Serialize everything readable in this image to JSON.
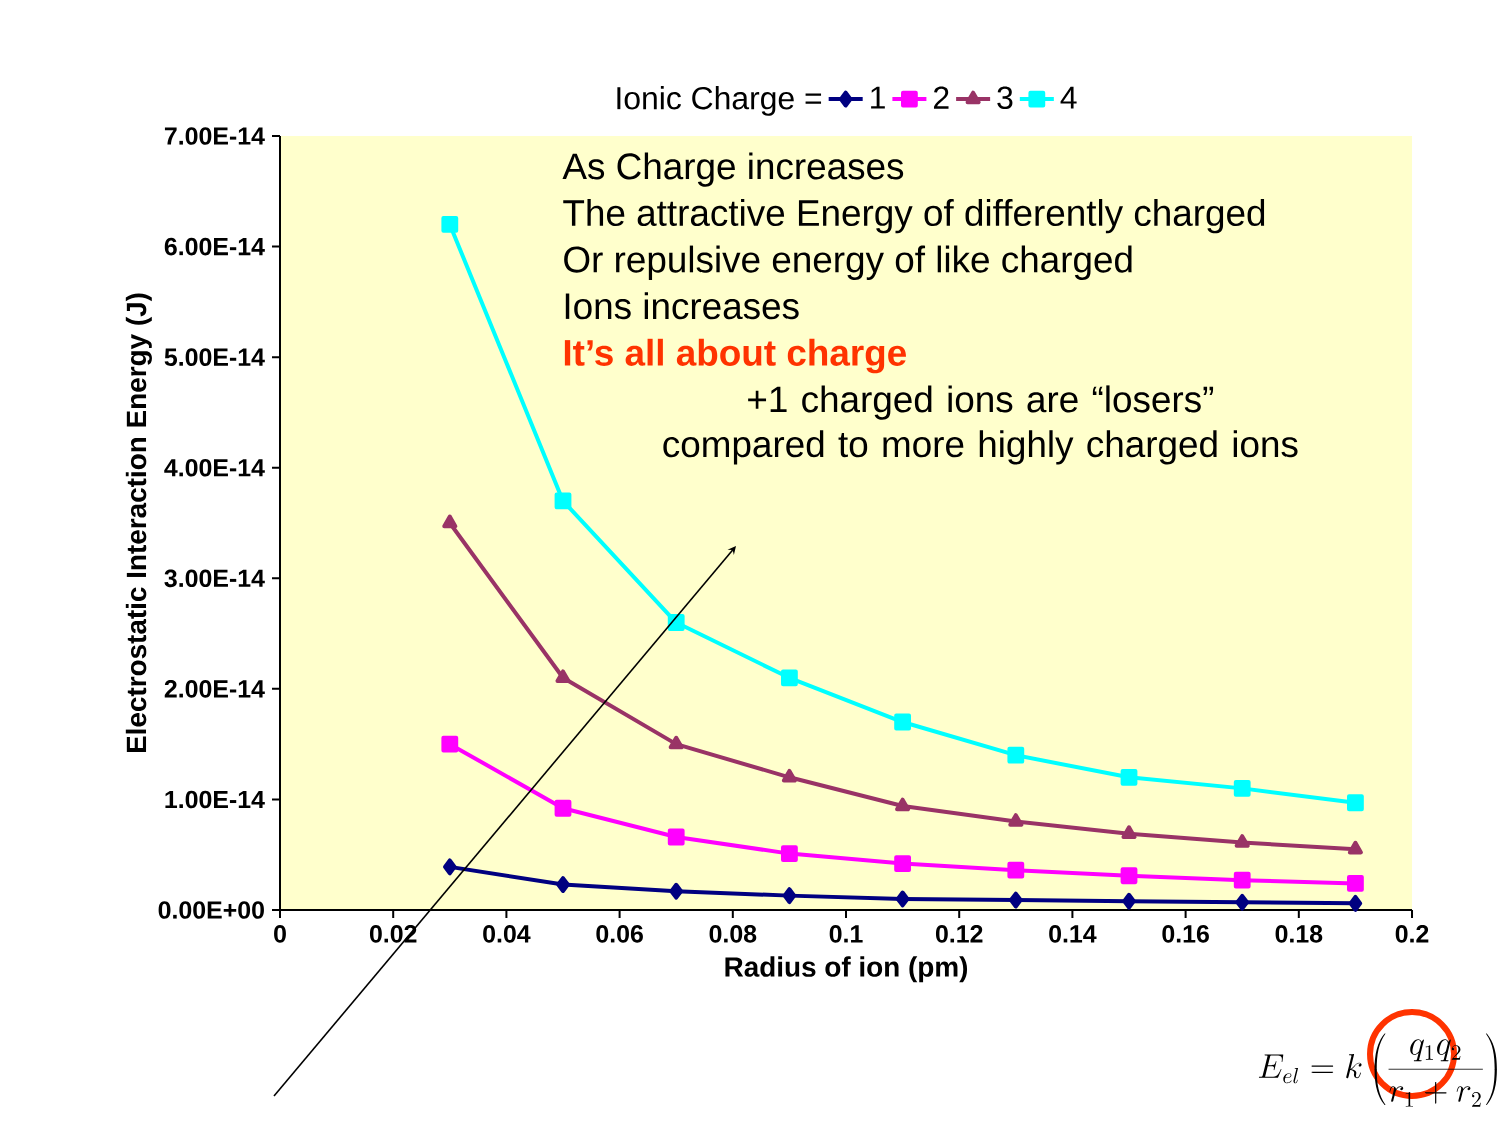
{
  "chart_data": {
    "type": "line",
    "legend_title": "Ionic Charge =",
    "legend": "top",
    "xlabel": "Radius of ion (pm)",
    "ylabel": "Electrostatic Interaction Energy (J)",
    "x": [
      0.03,
      0.05,
      0.07,
      0.09,
      0.11,
      0.13,
      0.15,
      0.17,
      0.19
    ],
    "xlim": [
      0,
      0.2
    ],
    "xticks": [
      0,
      0.02,
      0.04,
      0.06,
      0.08,
      0.1,
      0.12,
      0.14,
      0.16,
      0.18,
      0.2
    ],
    "ylim": [
      0,
      7e-14
    ],
    "yticks": [
      {
        "value": 0,
        "label": "0.00E+00"
      },
      {
        "value": 1e-14,
        "label": "1.00E-14"
      },
      {
        "value": 2e-14,
        "label": "2.00E-14"
      },
      {
        "value": 3e-14,
        "label": "3.00E-14"
      },
      {
        "value": 4e-14,
        "label": "4.00E-14"
      },
      {
        "value": 5e-14,
        "label": "5.00E-14"
      },
      {
        "value": 6e-14,
        "label": "6.00E-14"
      },
      {
        "value": 7e-14,
        "label": "7.00E-14"
      }
    ],
    "series": [
      {
        "name": "1",
        "color": "#000080",
        "marker": "diamond",
        "values": [
          3.9e-15,
          2.3e-15,
          1.7e-15,
          1.3e-15,
          1e-15,
          9e-16,
          8e-16,
          7e-16,
          6e-16
        ]
      },
      {
        "name": "2",
        "color": "#ff00ff",
        "marker": "square",
        "values": [
          1.5e-14,
          9.2e-15,
          6.6e-15,
          5.1e-15,
          4.2e-15,
          3.6e-15,
          3.1e-15,
          2.7e-15,
          2.4e-15
        ]
      },
      {
        "name": "3",
        "color": "#993366",
        "marker": "triangle",
        "values": [
          3.5e-14,
          2.1e-14,
          1.5e-14,
          1.2e-14,
          9.4e-15,
          8e-15,
          6.9e-15,
          6.1e-15,
          5.5e-15
        ]
      },
      {
        "name": "4",
        "color": "#00ffff",
        "marker": "square",
        "values": [
          6.2e-14,
          3.7e-14,
          2.6e-14,
          2.1e-14,
          1.7e-14,
          1.4e-14,
          1.2e-14,
          1.1e-14,
          9.7e-15
        ]
      }
    ],
    "annotations": [
      "As Charge increases",
      "The attractive Energy of differently charged",
      "Or repulsive energy of like charged",
      "Ions increases",
      "It’s all about charge",
      "+1 charged ions are “losers” compared to more highly charged ions",
      "E_{el} = k\\left(\\frac{q_1q_2}{r_1+r_2}\\right)"
    ]
  }
}
